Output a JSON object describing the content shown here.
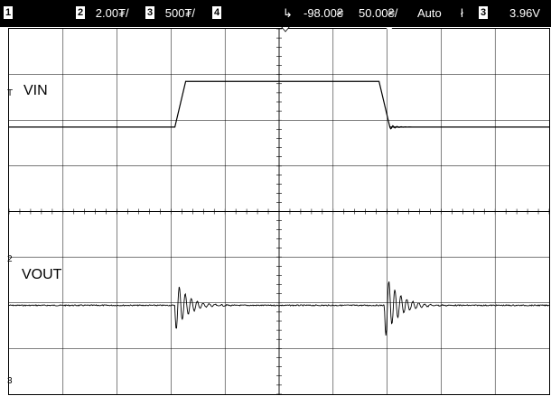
{
  "status": {
    "ch1_badge": "1",
    "ch2_badge": "2",
    "ch2_scale": "2.00₮/",
    "ch3_badge": "3",
    "ch3_scale": "500₮/",
    "ch4_badge": "4",
    "trigger_delay": "-98.00₴",
    "timebase": "50.00₴/",
    "trigger_mode": "Auto",
    "trigger_slope_symbol": "ł",
    "trigger_source_badge": "3",
    "trigger_level": "3.96V"
  },
  "traces": {
    "vin_label": "VIN",
    "vout_label": "VOUT"
  },
  "markers": {
    "ch1": "T",
    "ch2": "2",
    "ch3": "3"
  },
  "colors": {
    "background": "#ffffff",
    "grid": "#000000",
    "trace": "#000000",
    "status_bar": "#000000"
  },
  "chart_data": {
    "type": "line",
    "divisions": {
      "x": 10,
      "y": 8
    },
    "series": [
      {
        "name": "VIN",
        "x_div": [
          0,
          3.07,
          3.27,
          6.85,
          7.05,
          7.25,
          10
        ],
        "y_div": [
          -2.0,
          -2.0,
          -1.0,
          -1.0,
          -2.0,
          -2.0,
          -2.0
        ]
      },
      {
        "name": "VOUT",
        "baseline_div": 1.95,
        "bursts": [
          {
            "start_div": 3.07,
            "amplitude_div": 0.6,
            "decay_div": 0.55
          },
          {
            "start_div": 6.95,
            "amplitude_div": 0.75,
            "decay_div": 0.6
          }
        ]
      }
    ]
  }
}
